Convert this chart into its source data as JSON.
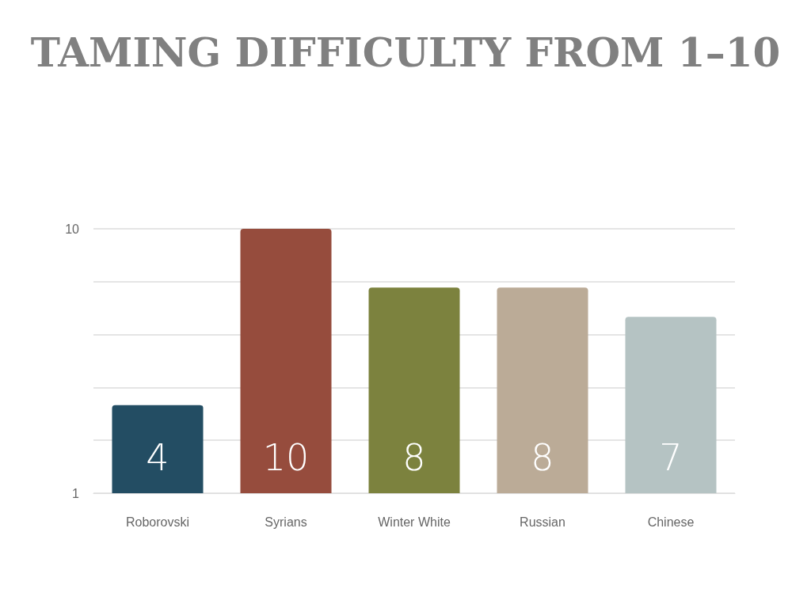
{
  "chart_data": {
    "type": "bar",
    "title": "TAMING DIFFICULTY FROM 1–10",
    "categories": [
      "Roborovski",
      "Syrians",
      "Winter White",
      "Russian",
      "Chinese"
    ],
    "values": [
      4,
      10,
      8,
      8,
      7
    ],
    "colors": [
      "#234d63",
      "#964c3d",
      "#7c823e",
      "#bbab97",
      "#b5c3c3"
    ],
    "ylim": [
      1,
      10
    ],
    "yticks": [
      1,
      {
        "value": 2.8,
        "label": null
      },
      {
        "value": 4.6,
        "label": null
      },
      {
        "value": 6.4,
        "label": null
      },
      {
        "value": 8.2,
        "label": null
      },
      10
    ],
    "grid": "y",
    "data_labels": true
  }
}
